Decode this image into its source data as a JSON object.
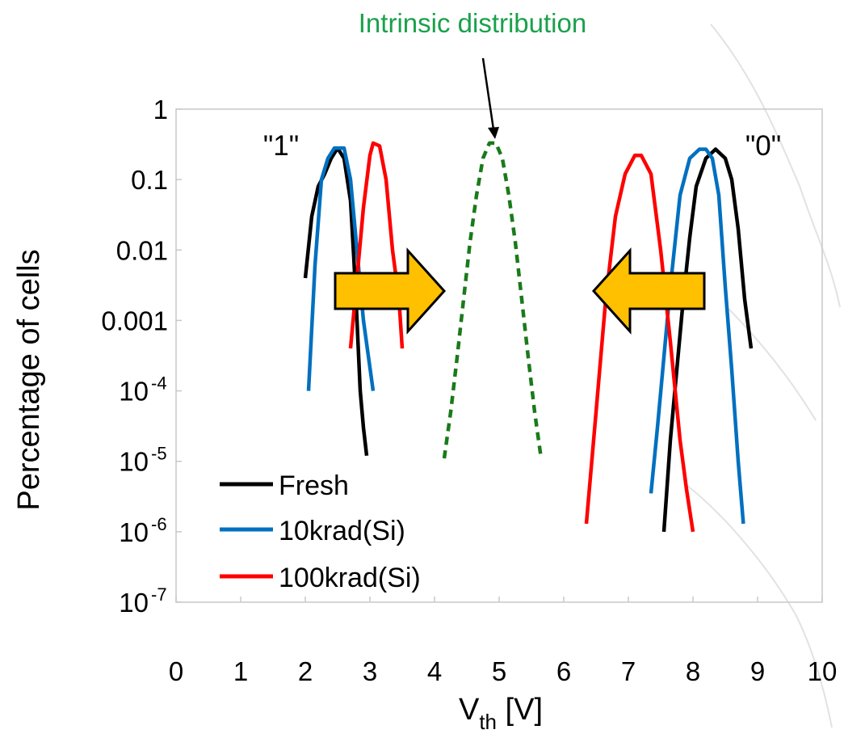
{
  "chart_data": {
    "type": "line",
    "yscale": "log",
    "xlim": [
      0,
      10
    ],
    "ylim": [
      1e-07,
      1
    ],
    "grid": false,
    "legend_position": "bottom-left",
    "xlabel": {
      "main": "V",
      "sub": "th",
      "unit": " [V]"
    },
    "ylabel": "Percentage of cells",
    "x_ticks": [
      {
        "value": 0,
        "label": "0"
      },
      {
        "value": 1,
        "label": "1"
      },
      {
        "value": 2,
        "label": "2"
      },
      {
        "value": 3,
        "label": "3"
      },
      {
        "value": 4,
        "label": "4"
      },
      {
        "value": 5,
        "label": "5"
      },
      {
        "value": 6,
        "label": "6"
      },
      {
        "value": 7,
        "label": "7"
      },
      {
        "value": 8,
        "label": "8"
      },
      {
        "value": 9,
        "label": "9"
      },
      {
        "value": 10,
        "label": "10"
      }
    ],
    "y_ticks": [
      {
        "value": 1,
        "label": "1"
      },
      {
        "value": 0.1,
        "label": "0.1"
      },
      {
        "value": 0.01,
        "label": "0.01"
      },
      {
        "value": 0.001,
        "label": "0.001"
      },
      {
        "value": 0.0001,
        "label": "10",
        "exp": "-4"
      },
      {
        "value": 1e-05,
        "label": "10",
        "exp": "-5"
      },
      {
        "value": 1e-06,
        "label": "10",
        "exp": "-6"
      },
      {
        "value": 1e-07,
        "label": "10",
        "exp": "-7"
      }
    ],
    "series": [
      {
        "name": "Fresh",
        "color": "#000000",
        "dashed": false,
        "curves": [
          [
            [
              2.0,
              0.004
            ],
            [
              2.1,
              0.03
            ],
            [
              2.2,
              0.08
            ],
            [
              2.3,
              0.12
            ],
            [
              2.4,
              0.2
            ],
            [
              2.5,
              0.28
            ],
            [
              2.6,
              0.2
            ],
            [
              2.7,
              0.05
            ],
            [
              2.75,
              0.008
            ],
            [
              2.8,
              0.001
            ],
            [
              2.85,
              0.0001
            ],
            [
              2.9,
              3e-05
            ],
            [
              2.95,
              1.2e-05
            ]
          ],
          [
            [
              7.55,
              1e-06
            ],
            [
              7.65,
              2e-05
            ],
            [
              7.75,
              0.0002
            ],
            [
              7.85,
              0.002
            ],
            [
              7.95,
              0.015
            ],
            [
              8.05,
              0.08
            ],
            [
              8.2,
              0.2
            ],
            [
              8.35,
              0.27
            ],
            [
              8.5,
              0.2
            ],
            [
              8.6,
              0.1
            ],
            [
              8.7,
              0.02
            ],
            [
              8.8,
              0.002
            ],
            [
              8.9,
              0.0004
            ]
          ]
        ]
      },
      {
        "name": "10krad(Si)",
        "color": "#0070c0",
        "dashed": false,
        "curves": [
          [
            [
              2.05,
              0.0001
            ],
            [
              2.15,
              0.006
            ],
            [
              2.25,
              0.1
            ],
            [
              2.35,
              0.2
            ],
            [
              2.45,
              0.28
            ],
            [
              2.6,
              0.28
            ],
            [
              2.7,
              0.1
            ],
            [
              2.8,
              0.01
            ],
            [
              2.9,
              0.001
            ],
            [
              3.05,
              0.0001
            ]
          ],
          [
            [
              7.35,
              3.5e-06
            ],
            [
              7.45,
              3e-05
            ],
            [
              7.55,
              0.0003
            ],
            [
              7.65,
              0.003
            ],
            [
              7.8,
              0.06
            ],
            [
              7.95,
              0.2
            ],
            [
              8.1,
              0.27
            ],
            [
              8.2,
              0.27
            ],
            [
              8.3,
              0.2
            ],
            [
              8.4,
              0.06
            ],
            [
              8.5,
              0.003
            ],
            [
              8.6,
              0.0002
            ],
            [
              8.7,
              1e-05
            ],
            [
              8.78,
              1.3e-06
            ]
          ]
        ]
      },
      {
        "name": "100krad(Si)",
        "color": "#ff0000",
        "dashed": false,
        "curves": [
          [
            [
              2.7,
              0.0004
            ],
            [
              2.8,
              0.004
            ],
            [
              2.9,
              0.04
            ],
            [
              3.0,
              0.22
            ],
            [
              3.05,
              0.33
            ],
            [
              3.15,
              0.3
            ],
            [
              3.25,
              0.1
            ],
            [
              3.35,
              0.01
            ],
            [
              3.45,
              0.002
            ],
            [
              3.5,
              0.0004
            ]
          ],
          [
            [
              6.35,
              1.3e-06
            ],
            [
              6.5,
              5e-05
            ],
            [
              6.65,
              0.002
            ],
            [
              6.8,
              0.03
            ],
            [
              6.95,
              0.12
            ],
            [
              7.1,
              0.22
            ],
            [
              7.2,
              0.22
            ],
            [
              7.35,
              0.12
            ],
            [
              7.5,
              0.01
            ],
            [
              7.65,
              0.0005
            ],
            [
              7.8,
              2e-05
            ],
            [
              7.9,
              4e-06
            ],
            [
              8.0,
              1e-06
            ]
          ]
        ]
      },
      {
        "color": "#1a7a1a",
        "dashed": true,
        "curves": [
          [
            [
              4.15,
              1.1e-05
            ],
            [
              4.25,
              5e-05
            ],
            [
              4.35,
              0.0003
            ],
            [
              4.45,
              0.002
            ],
            [
              4.55,
              0.013
            ],
            [
              4.65,
              0.06
            ],
            [
              4.75,
              0.2
            ],
            [
              4.85,
              0.33
            ],
            [
              4.95,
              0.33
            ],
            [
              5.05,
              0.2
            ],
            [
              5.15,
              0.06
            ],
            [
              5.25,
              0.013
            ],
            [
              5.35,
              0.002
            ],
            [
              5.45,
              0.0003
            ],
            [
              5.55,
              5e-05
            ],
            [
              5.65,
              1.1e-05
            ]
          ]
        ]
      }
    ],
    "annotations": {
      "label_1": "\"1\"",
      "label_0": "\"0\"",
      "intrinsic": "Intrinsic distribution",
      "intrinsic_color": "#1aa14a",
      "arrow_fill": "#ffc000"
    }
  }
}
